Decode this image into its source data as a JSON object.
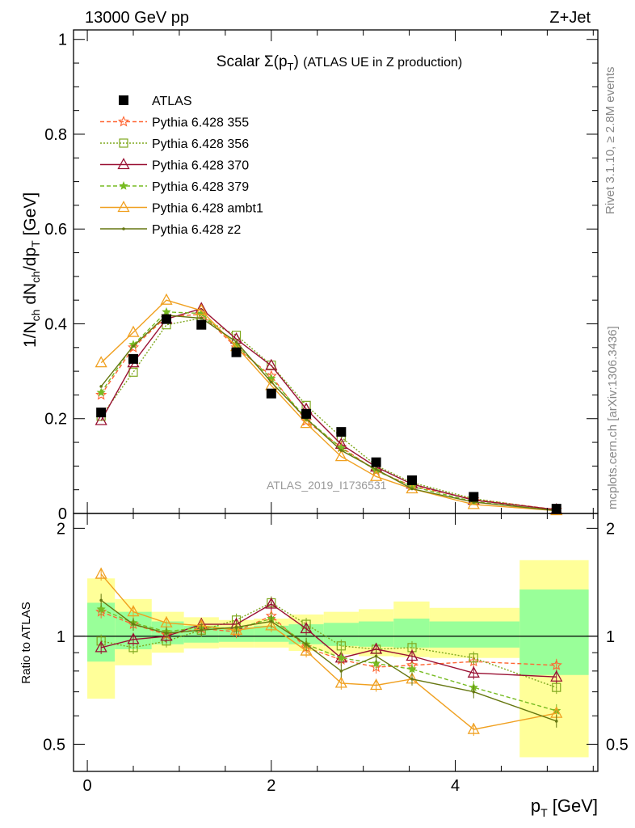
{
  "header": {
    "left": "13000 GeV pp",
    "right": "Z+Jet"
  },
  "side_labels": {
    "rivet": "Rivet 3.1.10, ≥ 2.8M events",
    "mcplots": "mcplots.cern.ch [arXiv:1306.3436]"
  },
  "watermark": "ATLAS_2019_I1736531",
  "chart_data": [
    {
      "type": "line",
      "panel": "main",
      "title": "Scalar Σ(p_T) (ATLAS UE in Z production)",
      "xlabel": "p_T [GeV]",
      "ylabel": "1/N_ch dN_ch/dp_T [GeV]",
      "xlim": [
        -0.15,
        5.55
      ],
      "ylim": [
        0,
        1.02
      ],
      "yticks": [
        0,
        0.2,
        0.4,
        0.6,
        0.8,
        1
      ],
      "ytick_labels": [
        "0",
        "0.2",
        "0.4",
        "0.6",
        "0.8",
        "1"
      ],
      "legend_position": "top-left",
      "x": [
        0.15,
        0.5,
        0.86,
        1.24,
        1.62,
        2.0,
        2.38,
        2.76,
        3.14,
        3.53,
        4.2,
        5.1
      ],
      "series": [
        {
          "name": "ATLAS",
          "color": "#000000",
          "style": "data",
          "values": [
            0.213,
            0.326,
            0.41,
            0.398,
            0.34,
            0.253,
            0.21,
            0.172,
            0.108,
            0.07,
            0.035,
            0.01
          ]
        },
        {
          "name": "Pythia 6.428 355",
          "color": "#ff6633",
          "style": "dashed",
          "marker": "star",
          "values": [
            0.25,
            0.35,
            0.415,
            0.42,
            0.35,
            0.29,
            0.195,
            0.14,
            0.09,
            0.058,
            0.03,
            0.008
          ]
        },
        {
          "name": "Pythia 6.428 356",
          "color": "#7fa81e",
          "style": "dotted",
          "marker": "square-open",
          "values": [
            0.205,
            0.298,
            0.398,
            0.412,
            0.376,
            0.313,
            0.228,
            0.161,
            0.101,
            0.065,
            0.031,
            0.007
          ]
        },
        {
          "name": "Pythia 6.428 370",
          "color": "#991133",
          "style": "solid",
          "marker": "triangle-open",
          "values": [
            0.196,
            0.318,
            0.41,
            0.432,
            0.368,
            0.312,
            0.22,
            0.146,
            0.098,
            0.062,
            0.028,
            0.008
          ]
        },
        {
          "name": "Pythia 6.428 379",
          "color": "#77bb22",
          "style": "dashed",
          "marker": "star-small",
          "values": [
            0.255,
            0.356,
            0.425,
            0.422,
            0.355,
            0.285,
            0.2,
            0.138,
            0.09,
            0.057,
            0.025,
            0.006
          ]
        },
        {
          "name": "Pythia 6.428 ambt1",
          "color": "#f0a020",
          "style": "solid",
          "marker": "triangle-open",
          "values": [
            0.318,
            0.382,
            0.45,
            0.428,
            0.352,
            0.27,
            0.19,
            0.12,
            0.078,
            0.052,
            0.019,
            0.006
          ]
        },
        {
          "name": "Pythia 6.428 z2",
          "color": "#667711",
          "style": "solid",
          "marker": "dot",
          "values": [
            0.268,
            0.353,
            0.418,
            0.412,
            0.362,
            0.277,
            0.2,
            0.133,
            0.093,
            0.052,
            0.024,
            0.006
          ]
        }
      ]
    },
    {
      "type": "line",
      "panel": "ratio",
      "ylabel": "Ratio to ATLAS",
      "xlabel": "p_T [GeV]",
      "xlim": [
        -0.15,
        5.55
      ],
      "xticks": [
        0,
        2,
        4
      ],
      "ytick_labels": [
        "0.5",
        "1",
        "2"
      ],
      "ylim": [
        0.42,
        2.2
      ],
      "x": [
        0.15,
        0.5,
        0.86,
        1.24,
        1.62,
        2.0,
        2.38,
        2.76,
        3.14,
        3.53,
        4.2,
        5.1
      ],
      "bands": {
        "x_edges": [
          0.0,
          0.3,
          0.7,
          1.05,
          1.43,
          1.81,
          2.19,
          2.57,
          2.95,
          3.33,
          3.72,
          4.7,
          5.45
        ],
        "green_low": [
          0.85,
          0.92,
          0.95,
          0.96,
          0.965,
          0.965,
          0.95,
          0.94,
          0.935,
          0.93,
          0.93,
          0.78
        ],
        "green_high": [
          1.24,
          1.17,
          1.1,
          1.07,
          1.06,
          1.07,
          1.08,
          1.09,
          1.1,
          1.12,
          1.1,
          1.35
        ],
        "yellow_low": [
          0.67,
          0.83,
          0.9,
          0.925,
          0.93,
          0.93,
          0.91,
          0.89,
          0.88,
          0.875,
          0.87,
          0.46
        ],
        "yellow_high": [
          1.45,
          1.27,
          1.17,
          1.13,
          1.11,
          1.12,
          1.15,
          1.17,
          1.19,
          1.25,
          1.2,
          1.63
        ]
      },
      "series": [
        {
          "name": "Pythia 6.428 355",
          "color": "#ff6633",
          "values": [
            1.17,
            1.08,
            1.01,
            1.05,
            1.03,
            1.14,
            0.93,
            0.86,
            0.82,
            0.83,
            0.85,
            0.83
          ]
        },
        {
          "name": "Pythia 6.428 356",
          "color": "#7fa81e",
          "values": [
            0.97,
            0.93,
            0.97,
            1.04,
            1.11,
            1.24,
            1.08,
            0.94,
            0.92,
            0.93,
            0.87,
            0.72
          ]
        },
        {
          "name": "Pythia 6.428 370",
          "color": "#991133",
          "values": [
            0.93,
            0.98,
            1.0,
            1.08,
            1.08,
            1.23,
            1.05,
            0.87,
            0.92,
            0.88,
            0.79,
            0.77
          ]
        },
        {
          "name": "Pythia 6.428 379",
          "color": "#77bb22",
          "values": [
            1.19,
            1.09,
            1.03,
            1.06,
            1.05,
            1.12,
            0.95,
            0.87,
            0.84,
            0.81,
            0.72,
            0.62
          ]
        },
        {
          "name": "Pythia 6.428 ambt1",
          "color": "#f0a020",
          "values": [
            1.49,
            1.17,
            1.09,
            1.07,
            1.04,
            1.07,
            0.91,
            0.74,
            0.73,
            0.76,
            0.55,
            0.61
          ]
        },
        {
          "name": "Pythia 6.428 z2",
          "color": "#667711",
          "values": [
            1.26,
            1.08,
            1.02,
            1.04,
            1.06,
            1.1,
            0.95,
            0.8,
            0.88,
            0.76,
            0.7,
            0.58
          ]
        }
      ]
    }
  ]
}
